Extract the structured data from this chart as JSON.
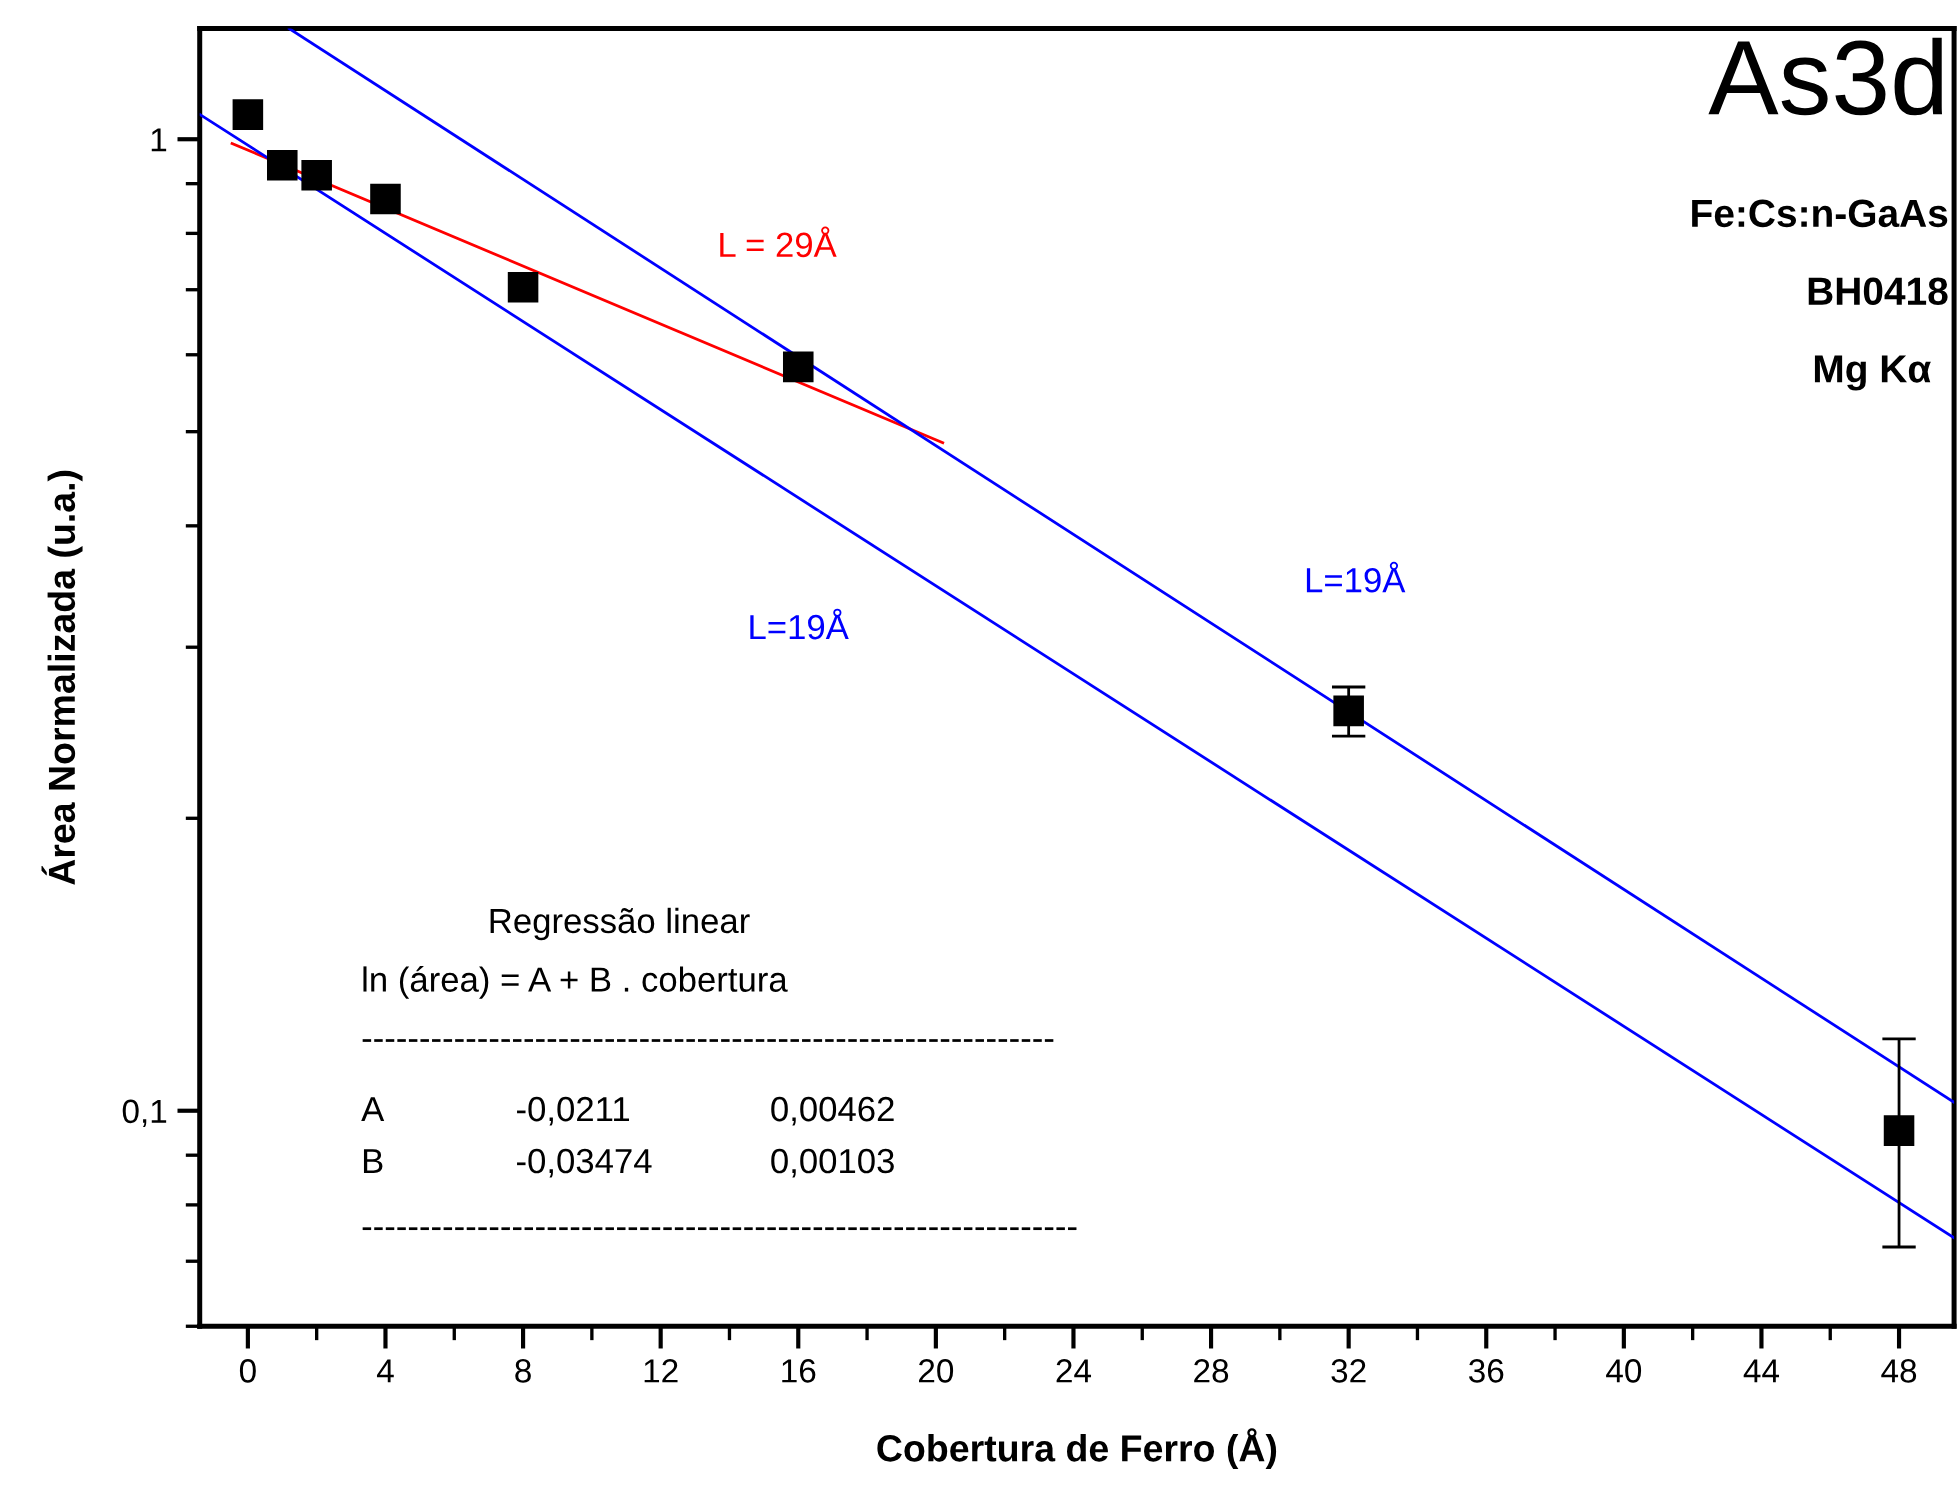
{
  "chart_data": {
    "type": "scatter",
    "xlabel": "Cobertura de Ferro (Å)",
    "ylabel": "Área Normalizada (u.a.)",
    "xlim": [
      -1.4,
      49.6
    ],
    "xticks": [
      0,
      4,
      8,
      12,
      16,
      20,
      24,
      28,
      32,
      36,
      40,
      44,
      48
    ],
    "ylim": [
      0.06,
      1.3
    ],
    "yticks": [
      {
        "value": 1,
        "label": "1"
      },
      {
        "value": 0.1,
        "label": "0,1"
      }
    ],
    "log": "y",
    "grid": false,
    "legend": false,
    "series": [
      {
        "marker": "square",
        "color": "#000000",
        "x": [
          0,
          1,
          2,
          4,
          8,
          16,
          32,
          48
        ],
        "values": [
          1.06,
          0.94,
          0.918,
          0.868,
          0.704,
          0.583,
          0.258,
          0.0954
        ],
        "errors": [
          null,
          null,
          null,
          null,
          null,
          null,
          [
            0.243,
            0.273
          ],
          [
            0.0724,
            0.1186
          ]
        ]
      },
      {
        "type": "line",
        "name": "L = 29Å",
        "color": "#ff0000",
        "x": [
          -0.46,
          20.2
        ],
        "values": [
          0.99,
          0.487
        ]
      },
      {
        "type": "line",
        "name": "L=19Å",
        "color": "#0000ff",
        "x": [
          1.2,
          49.6
        ],
        "values": [
          1.3,
          0.102
        ]
      },
      {
        "type": "line",
        "name": "L=19Å",
        "color": "#0000ff",
        "x": [
          -1.39,
          49.6
        ],
        "values": [
          1.06,
          0.074
        ]
      }
    ],
    "annotations": [
      "As3d",
      "Fe:Cs:n-GaAs",
      "BH0418",
      "Mg Kα",
      "Regressão linear",
      "ln (área) = A + B . cobertura",
      "------------------------------------------------------------",
      "A",
      "-0,0211",
      "0,00462",
      "B",
      "-0,03474",
      "0,00103",
      "--------------------------------------------------------------"
    ]
  }
}
